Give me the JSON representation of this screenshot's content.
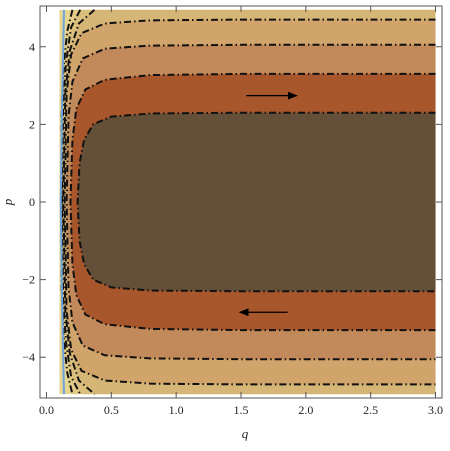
{
  "chart_data": {
    "type": "contour",
    "xlabel": "q",
    "ylabel": "p",
    "xlim": [
      -0.05,
      3.05
    ],
    "ylim": [
      -5.05,
      5.05
    ],
    "xticks": [
      {
        "value": 0,
        "label": "0.0"
      },
      0.5,
      {
        "value": 1,
        "label": "1.0"
      },
      1.5,
      {
        "value": 2,
        "label": "2.0"
      },
      2.5,
      {
        "value": 3,
        "label": "3.0"
      }
    ],
    "yticks": [
      {
        "value": -4,
        "label": "−4"
      },
      {
        "value": -2,
        "label": "−2"
      },
      0,
      2,
      4
    ],
    "plot_range": {
      "x": [
        0.1,
        3
      ],
      "y": [
        -4.95,
        4.95
      ]
    },
    "background_color": "#e6d690",
    "line_color": "#111111",
    "contours": [
      {
        "fill": "#e1cb85",
        "x": [
          0.2,
          0.16,
          0.13,
          0.117,
          0.115,
          0.117,
          0.13,
          0.16,
          0.2
        ],
        "y": [
          4.95,
          4.4,
          3.4,
          2.2,
          0,
          -2.2,
          -3.4,
          -4.4,
          -4.95
        ]
      },
      {
        "fill": "#dbc07d",
        "x": [
          0.26,
          0.19,
          0.15,
          0.128,
          0.12,
          0.128,
          0.15,
          0.19,
          0.26
        ],
        "y": [
          4.95,
          4.5,
          3.6,
          2.4,
          0,
          -2.4,
          -3.6,
          -4.5,
          -4.95
        ]
      },
      {
        "fill": "#d6b676",
        "x": [
          0.37,
          0.25,
          0.18,
          0.145,
          0.13,
          0.145,
          0.18,
          0.25,
          0.37
        ],
        "y": [
          4.95,
          4.6,
          3.9,
          2.8,
          0,
          -2.8,
          -3.9,
          -4.6,
          -4.95
        ]
      },
      {
        "fill": "#d0a46a",
        "x": [
          3,
          1.5,
          0.8,
          0.45,
          0.27,
          0.19,
          0.155,
          0.14,
          0.155,
          0.19,
          0.27,
          0.45,
          0.8,
          1.5,
          3
        ],
        "y": [
          4.7,
          4.7,
          4.68,
          4.6,
          4.35,
          3.8,
          2.8,
          0,
          -2.8,
          -3.8,
          -4.35,
          -4.6,
          -4.68,
          -4.7,
          -4.7
        ]
      },
      {
        "fill": "#c2895a",
        "x": [
          3,
          1.5,
          0.8,
          0.45,
          0.28,
          0.2,
          0.17,
          0.155,
          0.17,
          0.2,
          0.28,
          0.45,
          0.8,
          1.5,
          3
        ],
        "y": [
          4.05,
          4.05,
          4.03,
          3.95,
          3.7,
          3.1,
          2.2,
          0,
          -2.2,
          -3.1,
          -3.7,
          -3.95,
          -4.03,
          -4.05,
          -4.05
        ]
      },
      {
        "fill": "#a8562c",
        "x": [
          3,
          1.5,
          0.8,
          0.45,
          0.3,
          0.23,
          0.2,
          0.185,
          0.2,
          0.23,
          0.3,
          0.45,
          0.8,
          1.5,
          3
        ],
        "y": [
          3.3,
          3.3,
          3.27,
          3.15,
          2.9,
          2.4,
          1.6,
          0,
          -1.6,
          -2.4,
          -2.9,
          -3.15,
          -3.27,
          -3.3,
          -3.3
        ]
      },
      {
        "fill": "#645038",
        "x": [
          3,
          1.5,
          0.8,
          0.5,
          0.36,
          0.29,
          0.255,
          0.24,
          0.255,
          0.29,
          0.36,
          0.5,
          0.8,
          1.5,
          3
        ],
        "y": [
          2.3,
          2.3,
          2.28,
          2.2,
          2.0,
          1.6,
          1.0,
          0,
          -1.0,
          -1.6,
          -2.0,
          -2.2,
          -2.28,
          -2.3,
          -2.3
        ]
      }
    ],
    "boundary": {
      "color": "#6fa3dc",
      "x": [
        0.135,
        0.12,
        0.11,
        0.12,
        0.135
      ],
      "y": [
        4.95,
        2.5,
        0,
        -2.5,
        -4.95
      ]
    },
    "arrows": [
      {
        "x": [
          1.54,
          1.93
        ],
        "y": [
          2.74,
          2.74
        ]
      },
      {
        "x": [
          1.86,
          1.49
        ],
        "y": [
          -2.84,
          -2.84
        ]
      }
    ]
  }
}
